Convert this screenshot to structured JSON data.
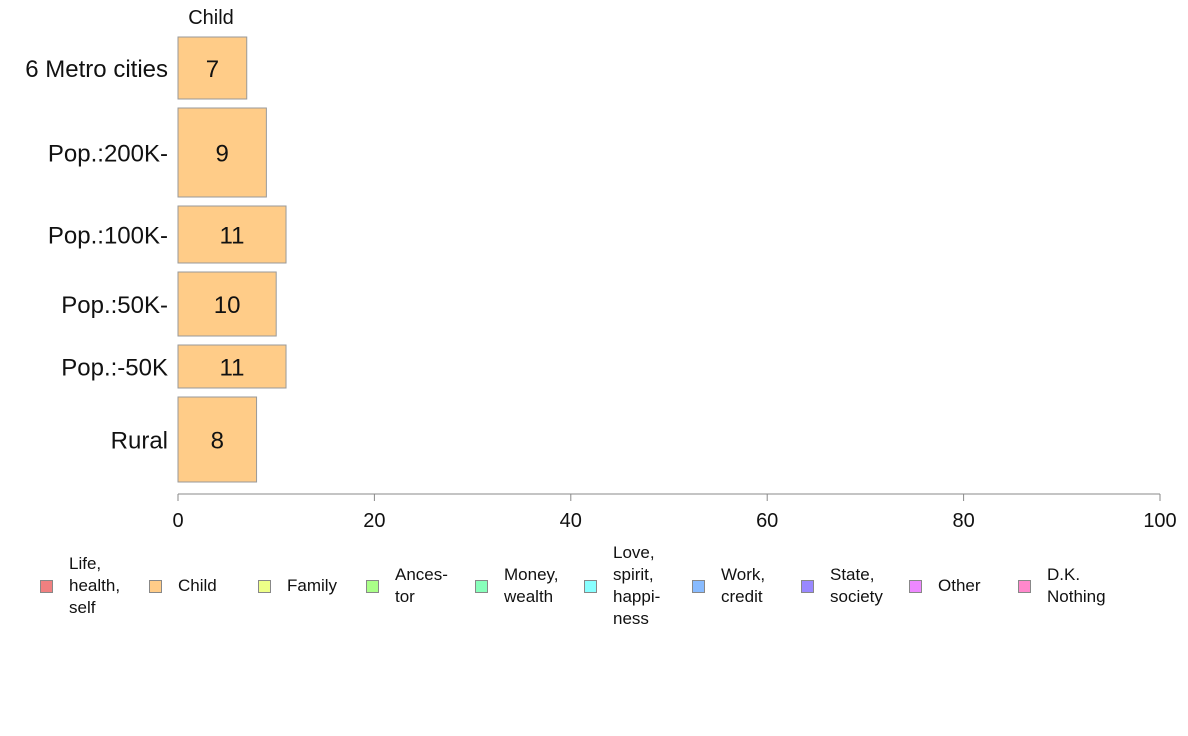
{
  "chart_data": {
    "type": "bar",
    "orientation": "horizontal",
    "stacked": true,
    "categories": [
      "6 Metro cities",
      "Pop.:200K-",
      "Pop.:100K-",
      "Pop.:50K-",
      "Pop.:-50K",
      "Rural"
    ],
    "series": [
      {
        "name": "Child",
        "color": "#FFCC88",
        "values": [
          7,
          9,
          11,
          10,
          11,
          8
        ]
      }
    ],
    "series_top_label": "Child",
    "xlim": [
      0,
      100
    ],
    "xticks": [
      "0",
      "20",
      "40",
      "60",
      "80",
      "100"
    ],
    "xlabel": "",
    "ylabel": "",
    "grid": false,
    "legend_position": "bottom",
    "legend": [
      {
        "label": "Life,\nhealth,\nself",
        "color": "#F08080"
      },
      {
        "label": "Child",
        "color": "#FFCC88"
      },
      {
        "label": "Family",
        "color": "#EEFF88"
      },
      {
        "label": "Ances-\ntor",
        "color": "#AAFF88"
      },
      {
        "label": "Money,\nwealth",
        "color": "#88FFBB"
      },
      {
        "label": "Love,\nspirit,\nhappi-\nness",
        "color": "#88FFFF"
      },
      {
        "label": "Work,\ncredit",
        "color": "#88BBFF"
      },
      {
        "label": "State,\nsociety",
        "color": "#9988FF"
      },
      {
        "label": "Other",
        "color": "#EE88FF"
      },
      {
        "label": "D.K.\nNothing",
        "color": "#FF88CC"
      }
    ]
  }
}
